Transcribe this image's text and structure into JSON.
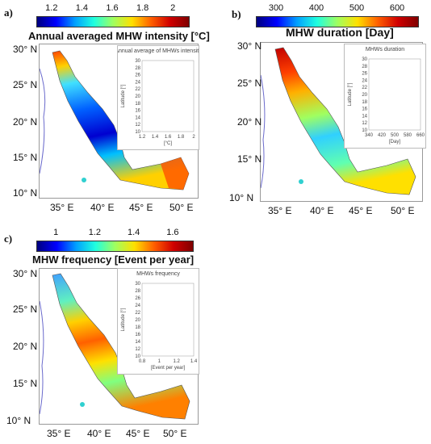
{
  "panels": [
    {
      "label": "a)",
      "title": "Annual averaged MHW intensity [°C]",
      "colorbar": {
        "ticks": [
          "1.2",
          "1.4",
          "1.6",
          "1.8",
          "2"
        ],
        "colors": [
          "#00007f",
          "#0000ff",
          "#00a0ff",
          "#20ffdf",
          "#9fff60",
          "#ffe000",
          "#ff6000",
          "#d00000",
          "#7f0000"
        ]
      },
      "lat_labels": [
        "30° N",
        "25° N",
        "20° N",
        "15° N",
        "10° N"
      ],
      "lon_labels": [
        "35° E",
        "40° E",
        "45° E",
        "50° E"
      ],
      "inset": {
        "title": "Annual average of MHWs intensity",
        "ylabel": "Latitude [°]",
        "xlabel": "[°C]",
        "xticks": [
          "1.2",
          "1.4",
          "1.6",
          "1.8",
          "2"
        ],
        "yticks": [
          "30",
          "28",
          "26",
          "24",
          "22",
          "20",
          "18",
          "16",
          "14",
          "12",
          "10"
        ],
        "xlim": [
          1.2,
          2.0
        ],
        "ylim": [
          10,
          30
        ]
      }
    },
    {
      "label": "b)",
      "title": "MHW duration [Day]",
      "colorbar": {
        "ticks": [
          "300",
          "400",
          "500",
          "600"
        ],
        "colors": [
          "#00007f",
          "#0000ff",
          "#00a0ff",
          "#20ffdf",
          "#9fff60",
          "#ffe000",
          "#ff6000",
          "#d00000",
          "#7f0000"
        ]
      },
      "lat_labels": [
        "30° N",
        "25° N",
        "20° N",
        "15° N",
        "10° N"
      ],
      "lon_labels": [
        "35° E",
        "40° E",
        "45° E",
        "50° E"
      ],
      "inset": {
        "title": "MHWs duration",
        "ylabel": "Latitude [°]",
        "xlabel": "[Day]",
        "xticks": [
          "340",
          "420",
          "500",
          "580",
          "660"
        ],
        "yticks": [
          "30",
          "28",
          "26",
          "24",
          "22",
          "20",
          "18",
          "16",
          "14",
          "12",
          "10"
        ],
        "xlim": [
          340,
          660
        ],
        "ylim": [
          10,
          30
        ]
      }
    },
    {
      "label": "c)",
      "title": "MHW frequency [Event per year]",
      "colorbar": {
        "ticks": [
          "1",
          "1.2",
          "1.4",
          "1.6"
        ],
        "colors": [
          "#00007f",
          "#0000ff",
          "#00a0ff",
          "#20ffdf",
          "#9fff60",
          "#ffe000",
          "#ff6000",
          "#d00000",
          "#7f0000"
        ]
      },
      "lat_labels": [
        "30° N",
        "25° N",
        "20° N",
        "15° N",
        "10° N"
      ],
      "lon_labels": [
        "35° E",
        "40° E",
        "45° E",
        "50° E"
      ],
      "inset": {
        "title": "MHWs frequency",
        "ylabel": "Latitude [°]",
        "xlabel": "[Event per year]",
        "xticks": [
          "0.8",
          "1",
          "1.2",
          "1.4"
        ],
        "yticks": [
          "30",
          "28",
          "26",
          "24",
          "22",
          "20",
          "18",
          "16",
          "14",
          "12",
          "10"
        ],
        "xlim": [
          0.8,
          1.4
        ],
        "ylim": [
          10,
          30
        ]
      }
    }
  ]
}
